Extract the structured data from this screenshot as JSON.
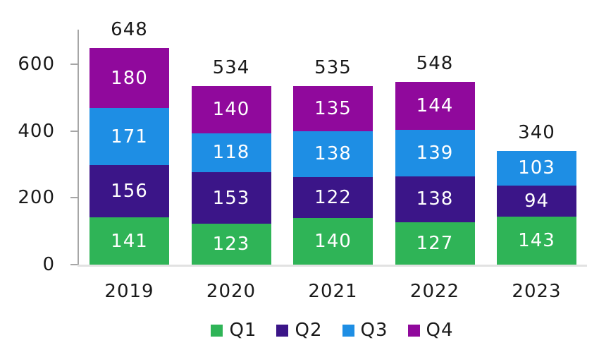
{
  "chart_data": {
    "type": "bar",
    "variant": "stacked-vertical",
    "title": "",
    "categories": [
      "2019",
      "2020",
      "2021",
      "2022",
      "2023"
    ],
    "series": [
      {
        "name": "Q1",
        "color": "#2FB457",
        "values": [
          141,
          123,
          140,
          127,
          143
        ]
      },
      {
        "name": "Q2",
        "color": "#3B1588",
        "values": [
          156,
          153,
          122,
          138,
          94
        ]
      },
      {
        "name": "Q3",
        "color": "#1E8EE4",
        "values": [
          171,
          118,
          138,
          139,
          103
        ]
      },
      {
        "name": "Q4",
        "color": "#90099C",
        "values": [
          180,
          140,
          135,
          144,
          0
        ]
      }
    ],
    "totals": [
      648,
      534,
      535,
      548,
      340
    ],
    "y_ticks": [
      0,
      200,
      400,
      600
    ],
    "ylim": [
      0,
      700
    ],
    "grid": false,
    "legend_position": "bottom",
    "legend_labels": [
      "Q1",
      "Q2",
      "Q3",
      "Q4"
    ]
  },
  "style_colors": {
    "axis_line": "#A6A6A6",
    "baseline": "#E2E2E2",
    "text": "#1A1A1A",
    "segment_text": "#FFFFFF",
    "background": "#FFFFFF"
  }
}
